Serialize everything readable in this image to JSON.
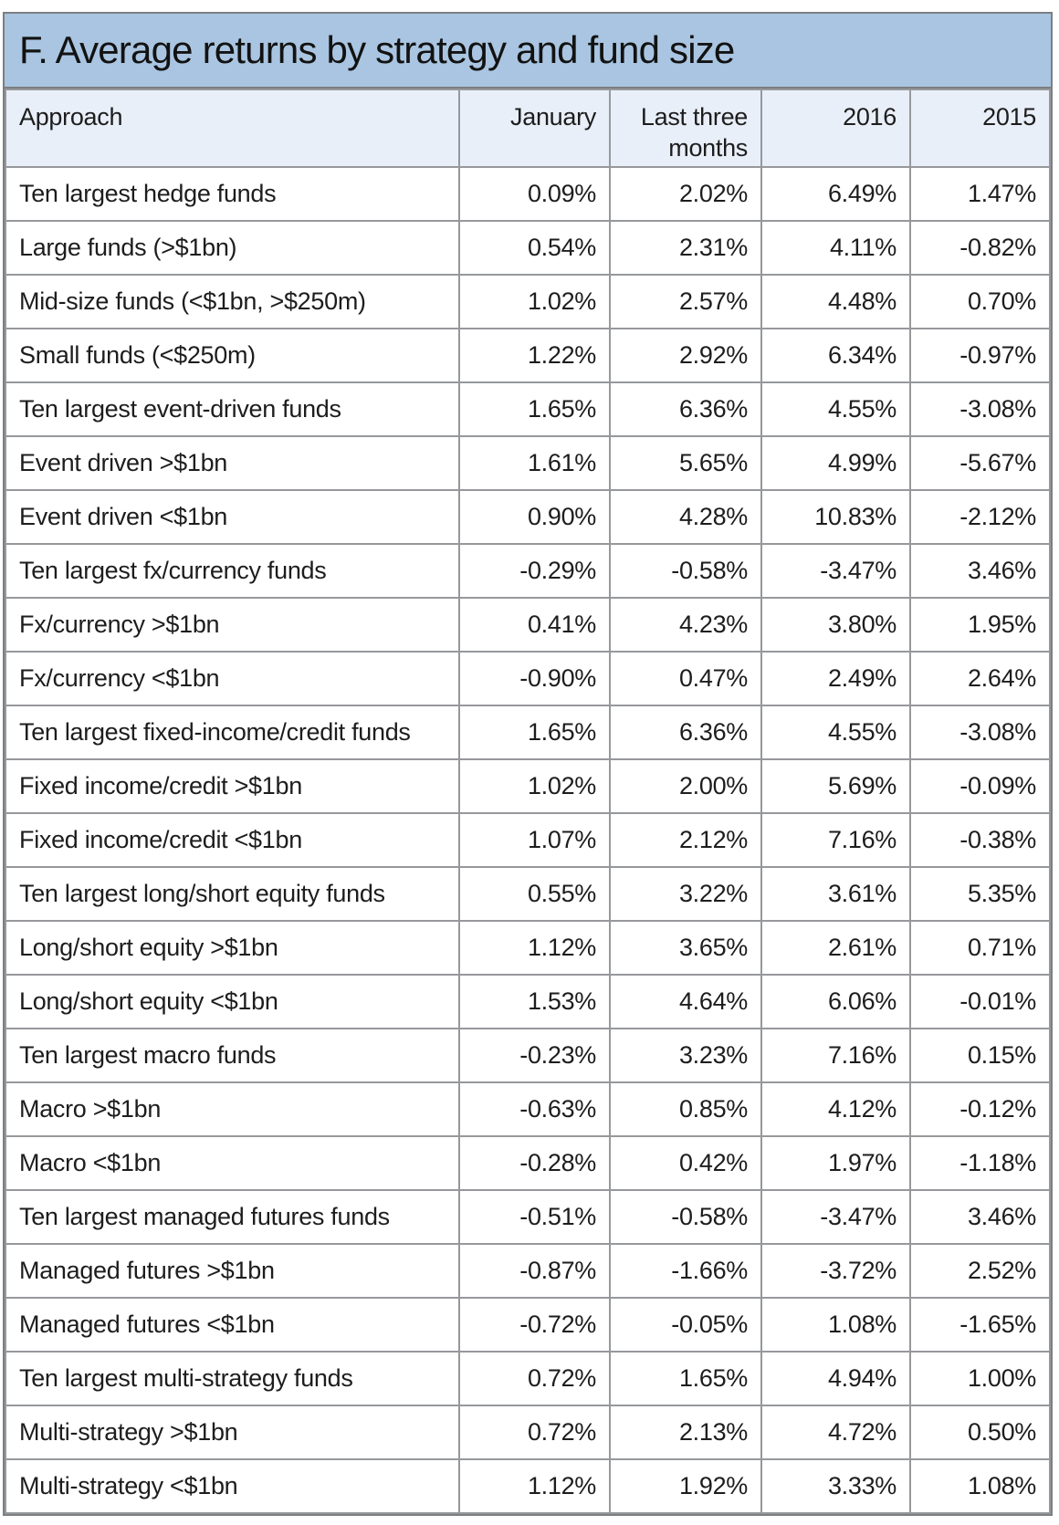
{
  "title": "F. Average returns by strategy and fund size",
  "chart_data": {
    "type": "table",
    "title": "F. Average returns by strategy and fund size",
    "columns": [
      "Approach",
      "January",
      "Last three months",
      "2016",
      "2015"
    ],
    "rows": [
      [
        "Ten largest hedge funds",
        "0.09%",
        "2.02%",
        "6.49%",
        "1.47%"
      ],
      [
        "Large funds (>$1bn)",
        "0.54%",
        "2.31%",
        "4.11%",
        "-0.82%"
      ],
      [
        "Mid-size funds (<$1bn, >$250m)",
        "1.02%",
        "2.57%",
        "4.48%",
        "0.70%"
      ],
      [
        "Small funds (<$250m)",
        "1.22%",
        "2.92%",
        "6.34%",
        "-0.97%"
      ],
      [
        "Ten largest event-driven funds",
        "1.65%",
        "6.36%",
        "4.55%",
        "-3.08%"
      ],
      [
        "Event driven >$1bn",
        "1.61%",
        "5.65%",
        "4.99%",
        "-5.67%"
      ],
      [
        "Event driven <$1bn",
        "0.90%",
        "4.28%",
        "10.83%",
        "-2.12%"
      ],
      [
        "Ten largest fx/currency funds",
        "-0.29%",
        "-0.58%",
        "-3.47%",
        "3.46%"
      ],
      [
        "Fx/currency >$1bn",
        "0.41%",
        "4.23%",
        "3.80%",
        "1.95%"
      ],
      [
        "Fx/currency <$1bn",
        "-0.90%",
        "0.47%",
        "2.49%",
        "2.64%"
      ],
      [
        "Ten largest fixed-income/credit funds",
        "1.65%",
        "6.36%",
        "4.55%",
        "-3.08%"
      ],
      [
        "Fixed income/credit >$1bn",
        "1.02%",
        "2.00%",
        "5.69%",
        "-0.09%"
      ],
      [
        "Fixed income/credit <$1bn",
        "1.07%",
        "2.12%",
        "7.16%",
        "-0.38%"
      ],
      [
        "Ten largest long/short equity funds",
        "0.55%",
        "3.22%",
        "3.61%",
        "5.35%"
      ],
      [
        "Long/short equity >$1bn",
        "1.12%",
        "3.65%",
        "2.61%",
        "0.71%"
      ],
      [
        "Long/short equity <$1bn",
        "1.53%",
        "4.64%",
        "6.06%",
        "-0.01%"
      ],
      [
        "Ten largest macro funds",
        "-0.23%",
        "3.23%",
        "7.16%",
        "0.15%"
      ],
      [
        "Macro >$1bn",
        "-0.63%",
        "0.85%",
        "4.12%",
        "-0.12%"
      ],
      [
        "Macro <$1bn",
        "-0.28%",
        "0.42%",
        "1.97%",
        "-1.18%"
      ],
      [
        "Ten largest managed futures funds",
        "-0.51%",
        "-0.58%",
        "-3.47%",
        "3.46%"
      ],
      [
        "Managed futures >$1bn",
        "-0.87%",
        "-1.66%",
        "-3.72%",
        "2.52%"
      ],
      [
        "Managed futures <$1bn",
        "-0.72%",
        "-0.05%",
        "1.08%",
        "-1.65%"
      ],
      [
        "Ten largest multi-strategy funds",
        "0.72%",
        "1.65%",
        "4.94%",
        "1.00%"
      ],
      [
        "Multi-strategy >$1bn",
        "0.72%",
        "2.13%",
        "4.72%",
        "0.50%"
      ],
      [
        "Multi-strategy <$1bn",
        "1.12%",
        "1.92%",
        "3.33%",
        "1.08%"
      ]
    ]
  },
  "colors": {
    "title_bar_bg": "#a9c5e1",
    "header_bg": "#e9eff9",
    "inner_border": "#96989b",
    "outer_border": "#7c7e81",
    "text": "#1d1d1d"
  }
}
